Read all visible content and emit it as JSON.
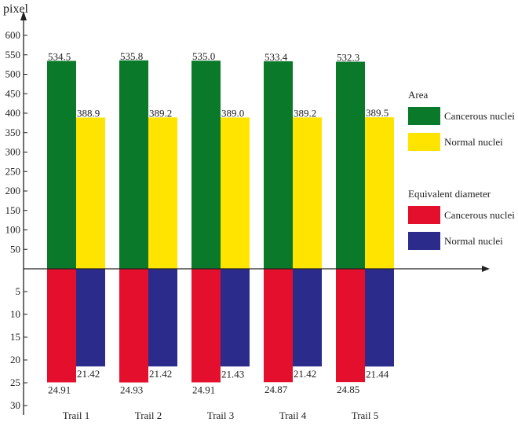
{
  "chart_data": {
    "type": "bar",
    "unit_label": "pixel",
    "categories": [
      "Trail 1",
      "Trail 2",
      "Trail 3",
      "Trail 4",
      "Trail 5"
    ],
    "upper_axis": {
      "ticks": [
        "50",
        "100",
        "150",
        "200",
        "250",
        "300",
        "350",
        "400",
        "450",
        "500",
        "550",
        "600"
      ],
      "range": [
        0,
        600
      ]
    },
    "lower_axis": {
      "ticks": [
        "5",
        "10",
        "15",
        "20",
        "25",
        "30"
      ],
      "range": [
        0,
        30
      ]
    },
    "legend_groups": [
      {
        "title": "Area",
        "items": [
          {
            "label": "Cancerous nuclei",
            "color": "#0a7a2a"
          },
          {
            "label": "Normal nuclei",
            "color": "#ffe400"
          }
        ]
      },
      {
        "title": "Equivalent diameter",
        "items": [
          {
            "label": "Cancerous nuclei",
            "color": "#e30f2c"
          },
          {
            "label": "Normal nuclei",
            "color": "#2b2b8c"
          }
        ]
      }
    ],
    "series": [
      {
        "group": "Area",
        "name": "Cancerous nuclei",
        "direction": "up",
        "color": "#0a7a2a",
        "values": [
          534.5,
          535.8,
          535.0,
          533.4,
          532.3
        ],
        "labels": [
          "534.5",
          "535.8",
          "535.0",
          "533.4",
          "532.3"
        ]
      },
      {
        "group": "Area",
        "name": "Normal nuclei",
        "direction": "up",
        "color": "#ffe400",
        "values": [
          388.9,
          389.2,
          389.0,
          389.2,
          389.5
        ],
        "labels": [
          "388.9",
          "389.2",
          "389.0",
          "389.2",
          "389.5"
        ]
      },
      {
        "group": "Equivalent diameter",
        "name": "Cancerous nuclei",
        "direction": "down",
        "color": "#e30f2c",
        "values": [
          24.91,
          24.93,
          24.91,
          24.87,
          24.85
        ],
        "labels": [
          "24.91",
          "24.93",
          "24.91",
          "24.87",
          "24.85"
        ]
      },
      {
        "group": "Equivalent diameter",
        "name": "Normal nuclei",
        "direction": "down",
        "color": "#2b2b8c",
        "values": [
          21.42,
          21.42,
          21.43,
          21.42,
          21.44
        ],
        "labels": [
          "21.42",
          "21.42",
          "21.43",
          "21.42",
          "21.44"
        ]
      }
    ]
  }
}
